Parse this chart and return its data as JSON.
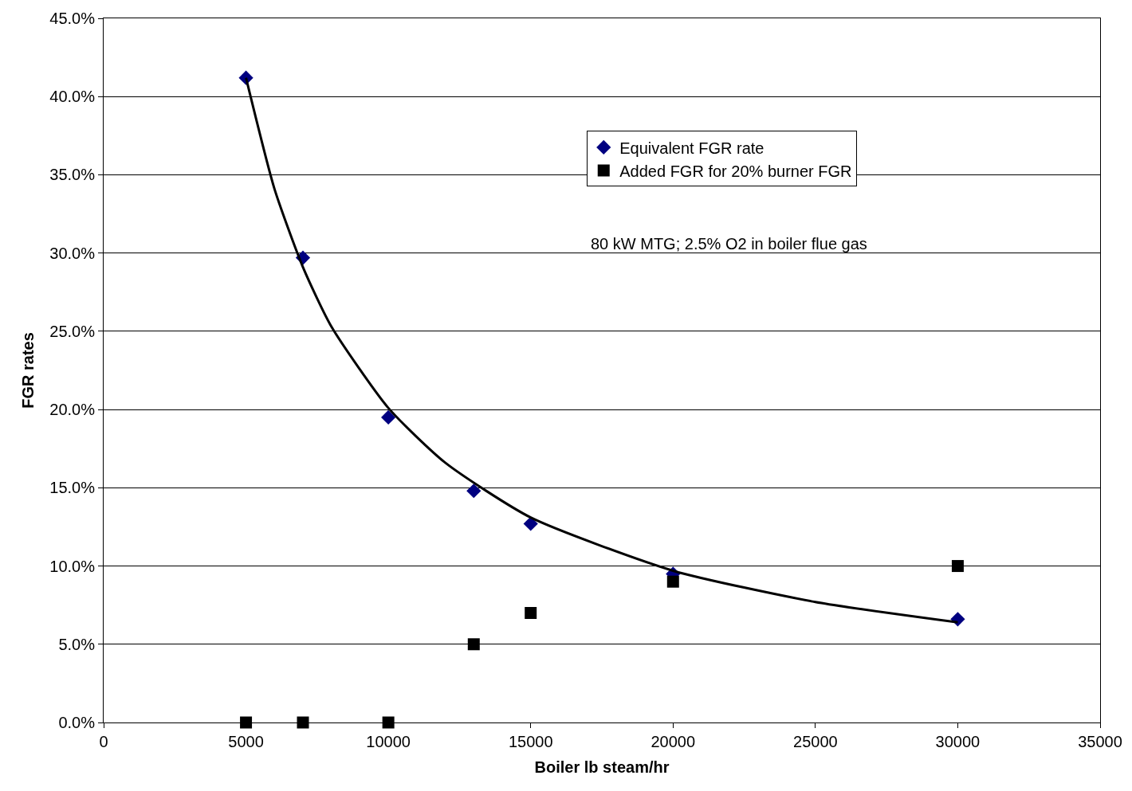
{
  "chart_data": {
    "type": "scatter",
    "xlabel": "Boiler lb steam/hr",
    "ylabel": "FGR rates",
    "annotations": [
      "80 kW MTG; 2.5% O2 in boiler flue gas"
    ],
    "x": [
      5000,
      7000,
      10000,
      13000,
      15000,
      20000,
      30000
    ],
    "series": [
      {
        "name": "Equivalent FGR rate",
        "color": "#000080",
        "marker": "diamond",
        "values": [
          41.2,
          29.7,
          19.5,
          14.8,
          12.7,
          9.5,
          6.6
        ]
      },
      {
        "name": "Added FGR for 20% burner FGR",
        "color": "#000000",
        "marker": "square",
        "values": [
          0,
          0,
          0,
          5,
          7,
          9,
          10
        ]
      },
      {
        "type": "line",
        "color": "#000000",
        "marker": "none",
        "x": [
          5000,
          6000,
          7000,
          8000,
          10000,
          12000,
          15000,
          20000,
          25000,
          30000
        ],
        "values": [
          41.2,
          34.1,
          29.1,
          25.3,
          20.1,
          16.6,
          13.1,
          9.7,
          7.7,
          6.4
        ]
      }
    ],
    "xlim": [
      0,
      35000
    ],
    "xticks": [
      0,
      5000,
      10000,
      15000,
      20000,
      25000,
      30000,
      35000
    ],
    "ylim": [
      0,
      45
    ],
    "yticks": [
      {
        "value": 0,
        "label": "0.0%"
      },
      {
        "value": 5,
        "label": "5.0%"
      },
      {
        "value": 10,
        "label": "10.0%"
      },
      {
        "value": 15,
        "label": "15.0%"
      },
      {
        "value": 20,
        "label": "20.0%"
      },
      {
        "value": 25,
        "label": "25.0%"
      },
      {
        "value": 30,
        "label": "30.0%"
      },
      {
        "value": 35,
        "label": "35.0%"
      },
      {
        "value": 40,
        "label": "40.0%"
      },
      {
        "value": 45,
        "label": "45.0%"
      }
    ],
    "grid": "y",
    "legend": "top right"
  }
}
